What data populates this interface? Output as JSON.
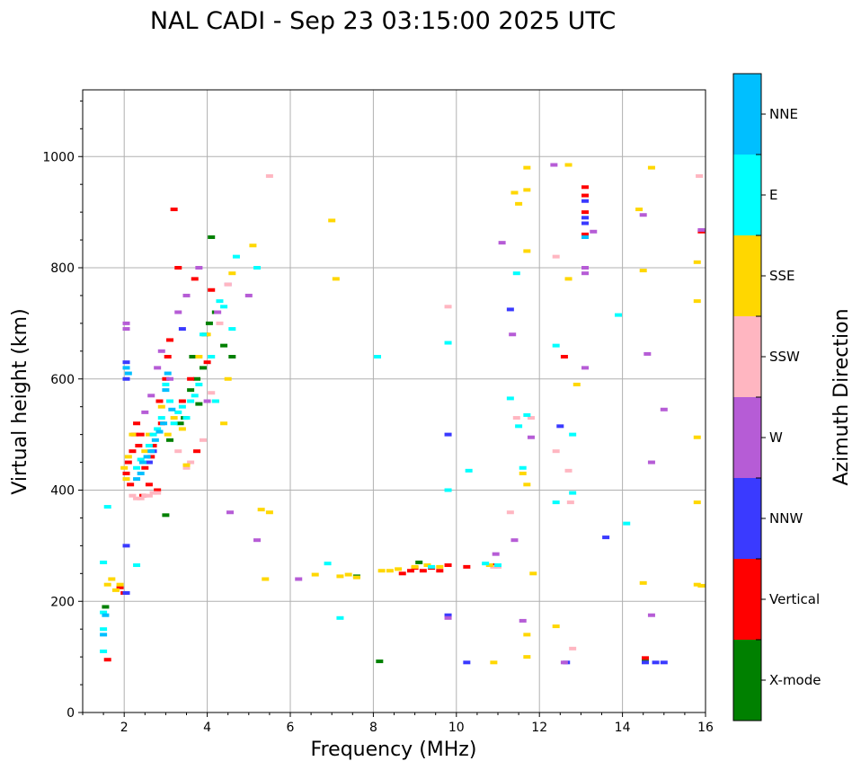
{
  "chart_data": {
    "type": "scatter",
    "title": "NAL CADI - Sep 23 03:15:00 2025 UTC",
    "xlabel": "Frequency (MHz)",
    "ylabel": "Virtual height (km)",
    "xlim": [
      1,
      16
    ],
    "ylim": [
      0,
      1120
    ],
    "xticks": [
      2,
      4,
      6,
      8,
      10,
      12,
      14,
      16
    ],
    "xtick_labels": [
      "2",
      "4",
      "6",
      "8",
      "10",
      "12",
      "14",
      "16"
    ],
    "yticks": [
      0,
      200,
      400,
      600,
      800,
      1000
    ],
    "ytick_labels": [
      "0",
      "200",
      "400",
      "600",
      "800",
      "1000"
    ],
    "grid": true,
    "colorbar": {
      "title": "Azimuth Direction",
      "categories": [
        {
          "name": "X-mode",
          "color": "#008000"
        },
        {
          "name": "Vertical",
          "color": "#ff0000"
        },
        {
          "name": "NNW",
          "color": "#3a3aff"
        },
        {
          "name": "W",
          "color": "#b65cd6"
        },
        {
          "name": "SSW",
          "color": "#ffb6c1"
        },
        {
          "name": "SSE",
          "color": "#ffd700"
        },
        {
          "name": "E",
          "color": "#00ffff"
        },
        {
          "name": "NNE",
          "color": "#00bfff"
        }
      ]
    },
    "series": [
      {
        "name": "X-mode",
        "points": [
          [
            1.55,
            190
          ],
          [
            3.0,
            355
          ],
          [
            3.35,
            520
          ],
          [
            3.45,
            530
          ],
          [
            3.6,
            580
          ],
          [
            3.75,
            600
          ],
          [
            3.9,
            620
          ],
          [
            3.95,
            680
          ],
          [
            4.05,
            700
          ],
          [
            4.1,
            855
          ],
          [
            4.2,
            720
          ],
          [
            4.4,
            660
          ],
          [
            4.6,
            640
          ],
          [
            7.6,
            245
          ],
          [
            8.15,
            92
          ],
          [
            9.1,
            270
          ],
          [
            14.55,
            92
          ],
          [
            3.1,
            490
          ],
          [
            3.8,
            555
          ],
          [
            3.65,
            640
          ]
        ]
      },
      {
        "name": "Vertical",
        "points": [
          [
            1.6,
            95
          ],
          [
            1.9,
            225
          ],
          [
            2.0,
            215
          ],
          [
            2.05,
            430
          ],
          [
            2.1,
            450
          ],
          [
            2.2,
            470
          ],
          [
            2.25,
            500
          ],
          [
            2.3,
            520
          ],
          [
            2.35,
            480
          ],
          [
            2.4,
            500
          ],
          [
            2.5,
            440
          ],
          [
            2.6,
            410
          ],
          [
            2.65,
            460
          ],
          [
            2.7,
            480
          ],
          [
            2.8,
            400
          ],
          [
            2.85,
            560
          ],
          [
            2.9,
            520
          ],
          [
            3.0,
            600
          ],
          [
            3.05,
            640
          ],
          [
            3.1,
            670
          ],
          [
            3.2,
            905
          ],
          [
            3.3,
            800
          ],
          [
            3.4,
            560
          ],
          [
            3.6,
            600
          ],
          [
            3.7,
            780
          ],
          [
            3.75,
            470
          ],
          [
            4.0,
            630
          ],
          [
            4.1,
            760
          ],
          [
            8.7,
            250
          ],
          [
            8.9,
            255
          ],
          [
            9.0,
            260
          ],
          [
            9.2,
            255
          ],
          [
            9.4,
            260
          ],
          [
            9.6,
            255
          ],
          [
            9.8,
            265
          ],
          [
            10.25,
            262
          ],
          [
            10.9,
            265
          ],
          [
            13.1,
            860
          ],
          [
            13.1,
            900
          ],
          [
            13.1,
            930
          ],
          [
            13.1,
            945
          ],
          [
            12.6,
            640
          ],
          [
            14.55,
            98
          ],
          [
            15.9,
            865
          ],
          [
            2.15,
            410
          ],
          [
            2.45,
            390
          ]
        ]
      },
      {
        "name": "NNW",
        "points": [
          [
            2.05,
            630
          ],
          [
            2.05,
            600
          ],
          [
            2.05,
            300
          ],
          [
            2.05,
            215
          ],
          [
            2.6,
            450
          ],
          [
            9.8,
            500
          ],
          [
            9.8,
            175
          ],
          [
            10.25,
            90
          ],
          [
            11.3,
            725
          ],
          [
            12.5,
            515
          ],
          [
            12.65,
            90
          ],
          [
            13.1,
            880
          ],
          [
            13.1,
            890
          ],
          [
            13.1,
            920
          ],
          [
            13.6,
            315
          ],
          [
            14.55,
            90
          ],
          [
            14.8,
            90
          ],
          [
            15.0,
            90
          ],
          [
            2.7,
            470
          ],
          [
            3.4,
            690
          ]
        ]
      },
      {
        "name": "W",
        "points": [
          [
            2.05,
            690
          ],
          [
            2.05,
            700
          ],
          [
            2.65,
            570
          ],
          [
            2.8,
            620
          ],
          [
            2.9,
            650
          ],
          [
            3.1,
            600
          ],
          [
            3.3,
            720
          ],
          [
            3.5,
            750
          ],
          [
            3.8,
            800
          ],
          [
            4.0,
            560
          ],
          [
            4.25,
            720
          ],
          [
            4.5,
            770
          ],
          [
            5.0,
            750
          ],
          [
            5.2,
            310
          ],
          [
            6.2,
            240
          ],
          [
            9.8,
            170
          ],
          [
            10.95,
            285
          ],
          [
            11.1,
            845
          ],
          [
            11.35,
            680
          ],
          [
            11.4,
            310
          ],
          [
            11.6,
            165
          ],
          [
            11.8,
            495
          ],
          [
            12.35,
            985
          ],
          [
            12.6,
            90
          ],
          [
            13.1,
            800
          ],
          [
            13.1,
            790
          ],
          [
            13.1,
            620
          ],
          [
            13.3,
            865
          ],
          [
            14.5,
            895
          ],
          [
            14.6,
            645
          ],
          [
            14.7,
            450
          ],
          [
            14.7,
            175
          ],
          [
            15.0,
            545
          ],
          [
            15.9,
            868
          ],
          [
            4.55,
            360
          ],
          [
            2.5,
            540
          ]
        ]
      },
      {
        "name": "SSW",
        "points": [
          [
            2.2,
            390
          ],
          [
            2.3,
            385
          ],
          [
            2.4,
            385
          ],
          [
            2.5,
            390
          ],
          [
            2.6,
            390
          ],
          [
            2.7,
            395
          ],
          [
            2.8,
            395
          ],
          [
            3.3,
            470
          ],
          [
            3.5,
            440
          ],
          [
            3.6,
            450
          ],
          [
            3.9,
            490
          ],
          [
            4.1,
            575
          ],
          [
            4.3,
            700
          ],
          [
            4.5,
            770
          ],
          [
            10.9,
            262
          ],
          [
            11.0,
            262
          ],
          [
            11.3,
            360
          ],
          [
            11.45,
            530
          ],
          [
            11.8,
            530
          ],
          [
            12.4,
            470
          ],
          [
            12.7,
            435
          ],
          [
            12.75,
            378
          ],
          [
            12.8,
            115
          ],
          [
            15.85,
            965
          ],
          [
            5.5,
            965
          ],
          [
            9.8,
            730
          ],
          [
            12.4,
            820
          ]
        ]
      },
      {
        "name": "SSE",
        "points": [
          [
            1.6,
            230
          ],
          [
            1.7,
            240
          ],
          [
            1.8,
            220
          ],
          [
            1.9,
            230
          ],
          [
            2.0,
            440
          ],
          [
            2.05,
            420
          ],
          [
            2.1,
            460
          ],
          [
            2.2,
            500
          ],
          [
            2.5,
            470
          ],
          [
            2.6,
            500
          ],
          [
            2.9,
            550
          ],
          [
            3.05,
            500
          ],
          [
            3.2,
            530
          ],
          [
            3.4,
            510
          ],
          [
            3.5,
            445
          ],
          [
            3.8,
            640
          ],
          [
            4.0,
            680
          ],
          [
            4.2,
            560
          ],
          [
            4.4,
            520
          ],
          [
            4.5,
            600
          ],
          [
            4.6,
            790
          ],
          [
            5.1,
            840
          ],
          [
            5.3,
            365
          ],
          [
            5.4,
            240
          ],
          [
            5.5,
            360
          ],
          [
            6.6,
            248
          ],
          [
            7.0,
            885
          ],
          [
            7.1,
            780
          ],
          [
            7.2,
            245
          ],
          [
            7.4,
            248
          ],
          [
            7.6,
            243
          ],
          [
            8.2,
            255
          ],
          [
            8.4,
            255
          ],
          [
            8.6,
            258
          ],
          [
            9.0,
            262
          ],
          [
            9.3,
            265
          ],
          [
            9.6,
            262
          ],
          [
            10.8,
            265
          ],
          [
            10.9,
            90
          ],
          [
            11.4,
            935
          ],
          [
            11.5,
            915
          ],
          [
            11.6,
            430
          ],
          [
            11.7,
            980
          ],
          [
            11.7,
            940
          ],
          [
            11.7,
            830
          ],
          [
            11.7,
            410
          ],
          [
            11.7,
            140
          ],
          [
            11.7,
            100
          ],
          [
            11.85,
            250
          ],
          [
            12.4,
            155
          ],
          [
            12.7,
            985
          ],
          [
            12.7,
            780
          ],
          [
            12.9,
            590
          ],
          [
            14.4,
            905
          ],
          [
            14.5,
            795
          ],
          [
            14.5,
            233
          ],
          [
            14.7,
            980
          ],
          [
            15.8,
            810
          ],
          [
            15.8,
            740
          ],
          [
            15.8,
            495
          ],
          [
            15.8,
            378
          ],
          [
            15.8,
            230
          ],
          [
            15.9,
            228
          ]
        ]
      },
      {
        "name": "E",
        "points": [
          [
            1.5,
            270
          ],
          [
            1.5,
            180
          ],
          [
            1.5,
            150
          ],
          [
            1.5,
            110
          ],
          [
            1.6,
            370
          ],
          [
            2.3,
            440
          ],
          [
            2.4,
            455
          ],
          [
            2.6,
            480
          ],
          [
            2.7,
            500
          ],
          [
            2.8,
            510
          ],
          [
            2.9,
            530
          ],
          [
            3.0,
            590
          ],
          [
            3.1,
            560
          ],
          [
            3.2,
            520
          ],
          [
            3.3,
            540
          ],
          [
            3.4,
            550
          ],
          [
            3.5,
            530
          ],
          [
            3.6,
            560
          ],
          [
            3.7,
            570
          ],
          [
            3.8,
            590
          ],
          [
            3.9,
            680
          ],
          [
            4.1,
            640
          ],
          [
            4.2,
            560
          ],
          [
            4.3,
            740
          ],
          [
            4.4,
            730
          ],
          [
            4.6,
            690
          ],
          [
            4.7,
            820
          ],
          [
            5.2,
            800
          ],
          [
            6.9,
            268
          ],
          [
            7.2,
            170
          ],
          [
            8.1,
            640
          ],
          [
            9.4,
            262
          ],
          [
            9.8,
            665
          ],
          [
            9.8,
            400
          ],
          [
            10.3,
            435
          ],
          [
            10.7,
            268
          ],
          [
            11.0,
            265
          ],
          [
            11.3,
            565
          ],
          [
            11.45,
            790
          ],
          [
            11.5,
            515
          ],
          [
            11.6,
            440
          ],
          [
            11.7,
            535
          ],
          [
            12.4,
            660
          ],
          [
            12.4,
            378
          ],
          [
            12.8,
            500
          ],
          [
            12.8,
            395
          ],
          [
            13.9,
            715
          ],
          [
            14.1,
            340
          ],
          [
            2.3,
            265
          ]
        ]
      },
      {
        "name": "NNE",
        "points": [
          [
            1.5,
            140
          ],
          [
            1.55,
            175
          ],
          [
            2.05,
            620
          ],
          [
            2.1,
            610
          ],
          [
            2.3,
            420
          ],
          [
            2.4,
            430
          ],
          [
            2.45,
            450
          ],
          [
            2.55,
            460
          ],
          [
            2.65,
            470
          ],
          [
            2.75,
            490
          ],
          [
            2.85,
            505
          ],
          [
            2.95,
            520
          ],
          [
            3.0,
            580
          ],
          [
            3.05,
            610
          ],
          [
            3.15,
            545
          ],
          [
            13.1,
            855
          ]
        ]
      }
    ]
  }
}
